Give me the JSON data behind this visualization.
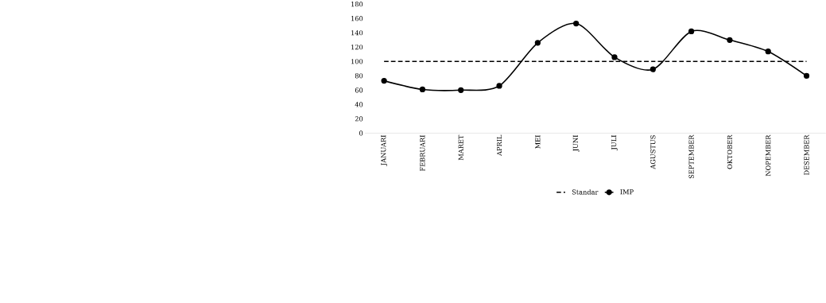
{
  "chart_data": {
    "type": "line",
    "categories": [
      "JANUARI",
      "FEBRUARI",
      "MARET",
      "APRIL",
      "MEI",
      "JUNI",
      "JULI",
      "AGUSTUS",
      "SEPTEMBER",
      "OKTOBER",
      "NOPEMBER",
      "DESEMBER"
    ],
    "series": [
      {
        "name": "Standar",
        "color": "#000000",
        "line_style": "dashed",
        "marker": "none",
        "values": [
          100,
          100,
          100,
          100,
          100,
          100,
          100,
          100,
          100,
          100,
          100,
          100
        ]
      },
      {
        "name": "IMP",
        "color": "#000000",
        "line_style": "solid",
        "marker": "circle",
        "values": [
          73,
          61,
          60,
          66,
          126,
          153,
          106,
          89,
          142,
          130,
          114,
          80
        ]
      }
    ],
    "ylim": [
      0,
      180
    ],
    "yticks": [
      0,
      20,
      40,
      60,
      80,
      100,
      120,
      140,
      160,
      180
    ],
    "grid": false,
    "legend": "bottom"
  }
}
